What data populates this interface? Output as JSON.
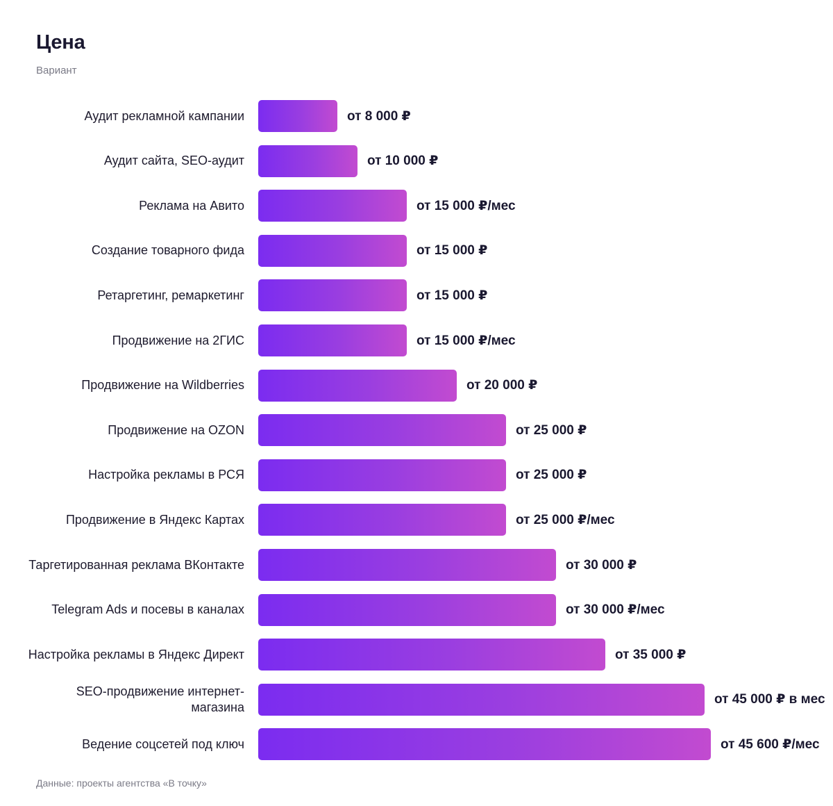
{
  "header": {
    "title": "Цена",
    "subtitle": "Вариант"
  },
  "footer": {
    "source": "Данные: проекты агентства «В точку»"
  },
  "chart_data": {
    "type": "bar",
    "orientation": "horizontal",
    "title": "Цена",
    "subtitle": "Вариант",
    "xlim": [
      0,
      45600
    ],
    "categories": [
      "Аудит рекламной кампании",
      "Аудит сайта, SEO-аудит",
      "Реклама на Авито",
      "Создание товарного фида",
      "Ретаргетинг, ремаркетинг",
      "Продвижение на 2ГИС",
      "Продвижение на Wildberries",
      "Продвижение на OZON",
      "Настройка рекламы в РСЯ",
      "Продвижение в Яндекс Картах",
      "Таргетированная реклама ВКонтакте",
      "Telegram Ads и посевы в каналах",
      "Настройка рекламы в Яндекс Директ",
      "SEO-продвижение интернет-магазина",
      "Ведение соцсетей под ключ"
    ],
    "values": [
      8000,
      10000,
      15000,
      15000,
      15000,
      15000,
      20000,
      25000,
      25000,
      25000,
      30000,
      30000,
      35000,
      45000,
      45600
    ],
    "value_labels": [
      "от 8 000 ₽",
      "от 10 000 ₽",
      "от 15 000 ₽/мес",
      "от 15 000 ₽",
      "от 15 000 ₽",
      "от 15 000 ₽/мес",
      "от 20 000 ₽",
      "от 25 000 ₽",
      "от 25 000 ₽",
      "от 25 000 ₽/мес",
      "от 30 000 ₽",
      "от 30 000 ₽/мес",
      "от 35 000 ₽",
      "от 45 000 ₽ в мес",
      "от 45 600 ₽/мес"
    ],
    "colors": {
      "bar_start": "#7b2cf0",
      "bar_end": "#c24bd0"
    }
  }
}
